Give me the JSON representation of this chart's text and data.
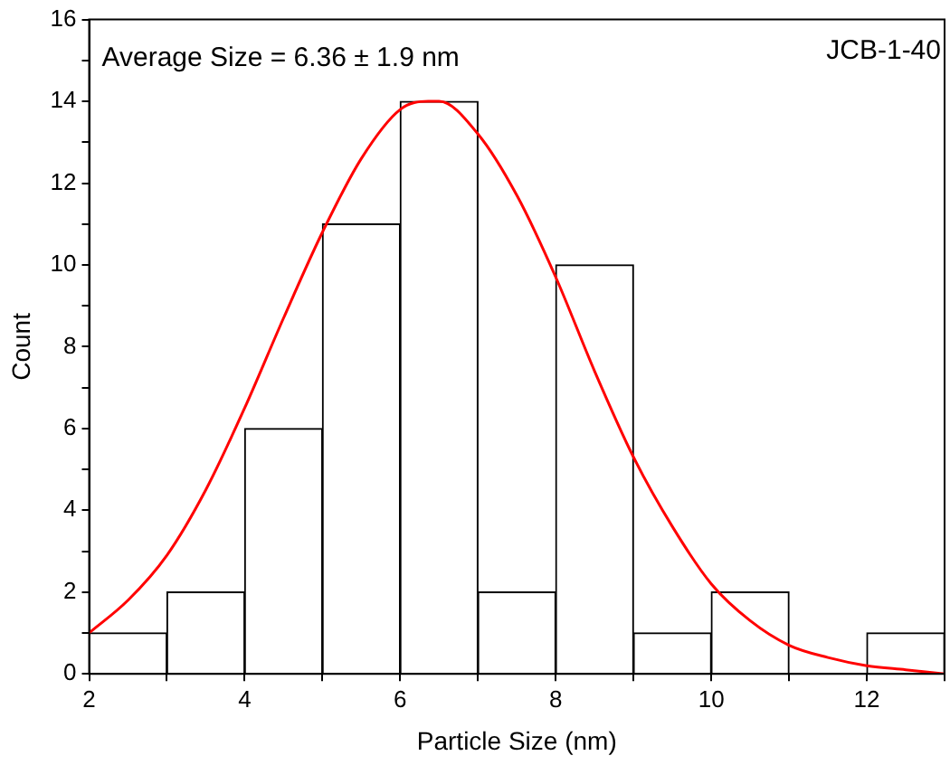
{
  "chart_data": {
    "type": "histogram",
    "xlabel": "Particle Size (nm)",
    "ylabel": "Count",
    "annotations": [
      "Average Size = 6.36 ± 1.9 nm",
      "JCB-1-40"
    ],
    "bins": [
      2,
      3,
      4,
      5,
      6,
      7,
      8,
      9,
      10,
      11,
      12,
      13
    ],
    "values": [
      1,
      2,
      6,
      11,
      14,
      2,
      10,
      1,
      2,
      0,
      1
    ],
    "color": "#ffffff",
    "series": [
      {
        "type": "line",
        "color": "#ff0000",
        "marker": "none",
        "x": [
          2,
          2.5,
          3,
          3.5,
          4,
          4.5,
          5,
          5.5,
          6,
          6.36,
          6.5,
          7,
          7.5,
          8,
          8.5,
          9,
          9.5,
          10,
          10.5,
          11,
          11.5,
          12,
          12.5,
          13
        ],
        "values": [
          1.0,
          1.8,
          2.9,
          4.5,
          6.5,
          8.7,
          10.8,
          12.6,
          13.8,
          14.0,
          14.0,
          13.2,
          11.7,
          9.7,
          7.4,
          5.3,
          3.6,
          2.2,
          1.3,
          0.7,
          0.4,
          0.2,
          0.1,
          0.0
        ]
      }
    ],
    "xlim": [
      2,
      13
    ],
    "xticks": [
      2,
      {
        "value": 3,
        "label": null
      },
      4,
      {
        "value": 5,
        "label": null
      },
      6,
      {
        "value": 7,
        "label": null
      },
      8,
      {
        "value": 9,
        "label": null
      },
      10,
      {
        "value": 11,
        "label": null
      },
      12,
      {
        "value": 13,
        "label": null
      }
    ],
    "ylim": [
      0,
      16
    ],
    "yticks": [
      0,
      {
        "value": 1,
        "label": null
      },
      2,
      {
        "value": 3,
        "label": null
      },
      4,
      {
        "value": 5,
        "label": null
      },
      6,
      {
        "value": 7,
        "label": null
      },
      8,
      {
        "value": 9,
        "label": null
      },
      10,
      {
        "value": 11,
        "label": null
      },
      12,
      {
        "value": 13,
        "label": null
      },
      14,
      {
        "value": 15,
        "label": null
      },
      16
    ],
    "grid": false,
    "legend": false
  }
}
